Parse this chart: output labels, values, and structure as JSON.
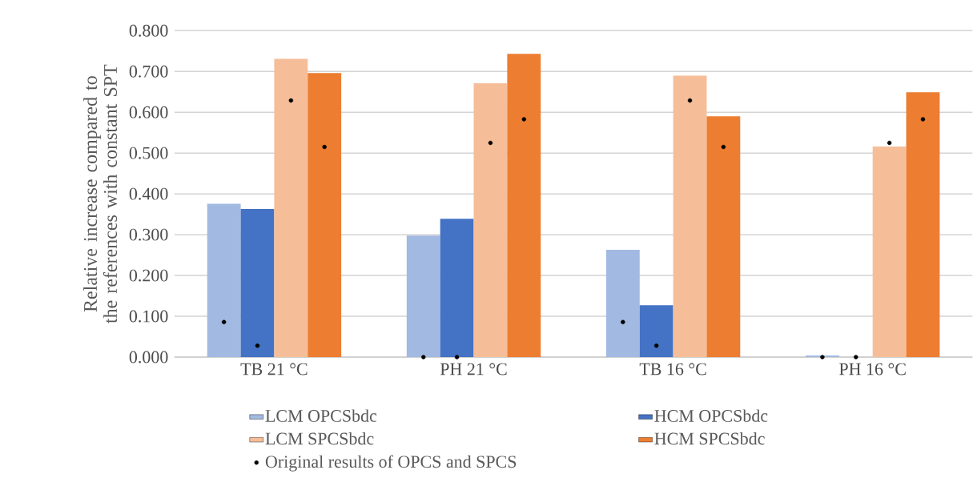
{
  "chart_data": {
    "type": "bar",
    "ylabel": "Relative increase compared to the references with constant SPT",
    "categories": [
      "TB 21 °C",
      "PH 21 °C",
      "TB 16 °C",
      "PH 16 °C"
    ],
    "series": [
      {
        "name": "LCM OPCSbdc",
        "color": "#a2b9e2",
        "values": [
          0.376,
          0.298,
          0.263,
          0.004
        ]
      },
      {
        "name": "HCM OPCSbdc",
        "color": "#4472c4",
        "values": [
          0.363,
          0.339,
          0.127,
          0
        ]
      },
      {
        "name": "LCM SPCSbdc",
        "color": "#f6be98",
        "values": [
          0.731,
          0.671,
          0.69,
          0.516
        ]
      },
      {
        "name": "HCM SPCSbdc",
        "color": "#ed7d31",
        "values": [
          0.696,
          0.743,
          0.59,
          0.649
        ]
      },
      {
        "name": "Original results of OPCS and SPCS",
        "type": "scatter",
        "color": "#000000",
        "x": [
          "TB 21 °C",
          "TB 21 °C",
          "TB 21 °C",
          "TB 21 °C",
          "PH 21 °C",
          "PH 21 °C",
          "PH 21 °C",
          "PH 21 °C",
          "TB 16 °C",
          "TB 16 °C",
          "TB 16 °C",
          "TB 16 °C",
          "PH 16 °C",
          "PH 16 °C",
          "PH 16 °C",
          "PH 16 °C"
        ],
        "values": [
          0.086,
          0.028,
          0.629,
          0.515,
          0,
          0,
          0.525,
          0.583,
          0.086,
          0.028,
          0.629,
          0.515,
          0,
          0,
          0.525,
          0.583
        ]
      }
    ],
    "ylim": [
      0,
      0.8
    ],
    "yticks": [
      {
        "value": 0,
        "label": "0.000"
      },
      {
        "value": 0.1,
        "label": "0.100"
      },
      {
        "value": 0.2,
        "label": "0.200"
      },
      {
        "value": 0.3,
        "label": "0.300"
      },
      {
        "value": 0.4,
        "label": "0.400"
      },
      {
        "value": 0.5,
        "label": "0.500"
      },
      {
        "value": 0.6,
        "label": "0.600"
      },
      {
        "value": 0.7,
        "label": "0.700"
      },
      {
        "value": 0.8,
        "label": "0.800"
      }
    ],
    "grid": "y",
    "legend": "bottom"
  }
}
